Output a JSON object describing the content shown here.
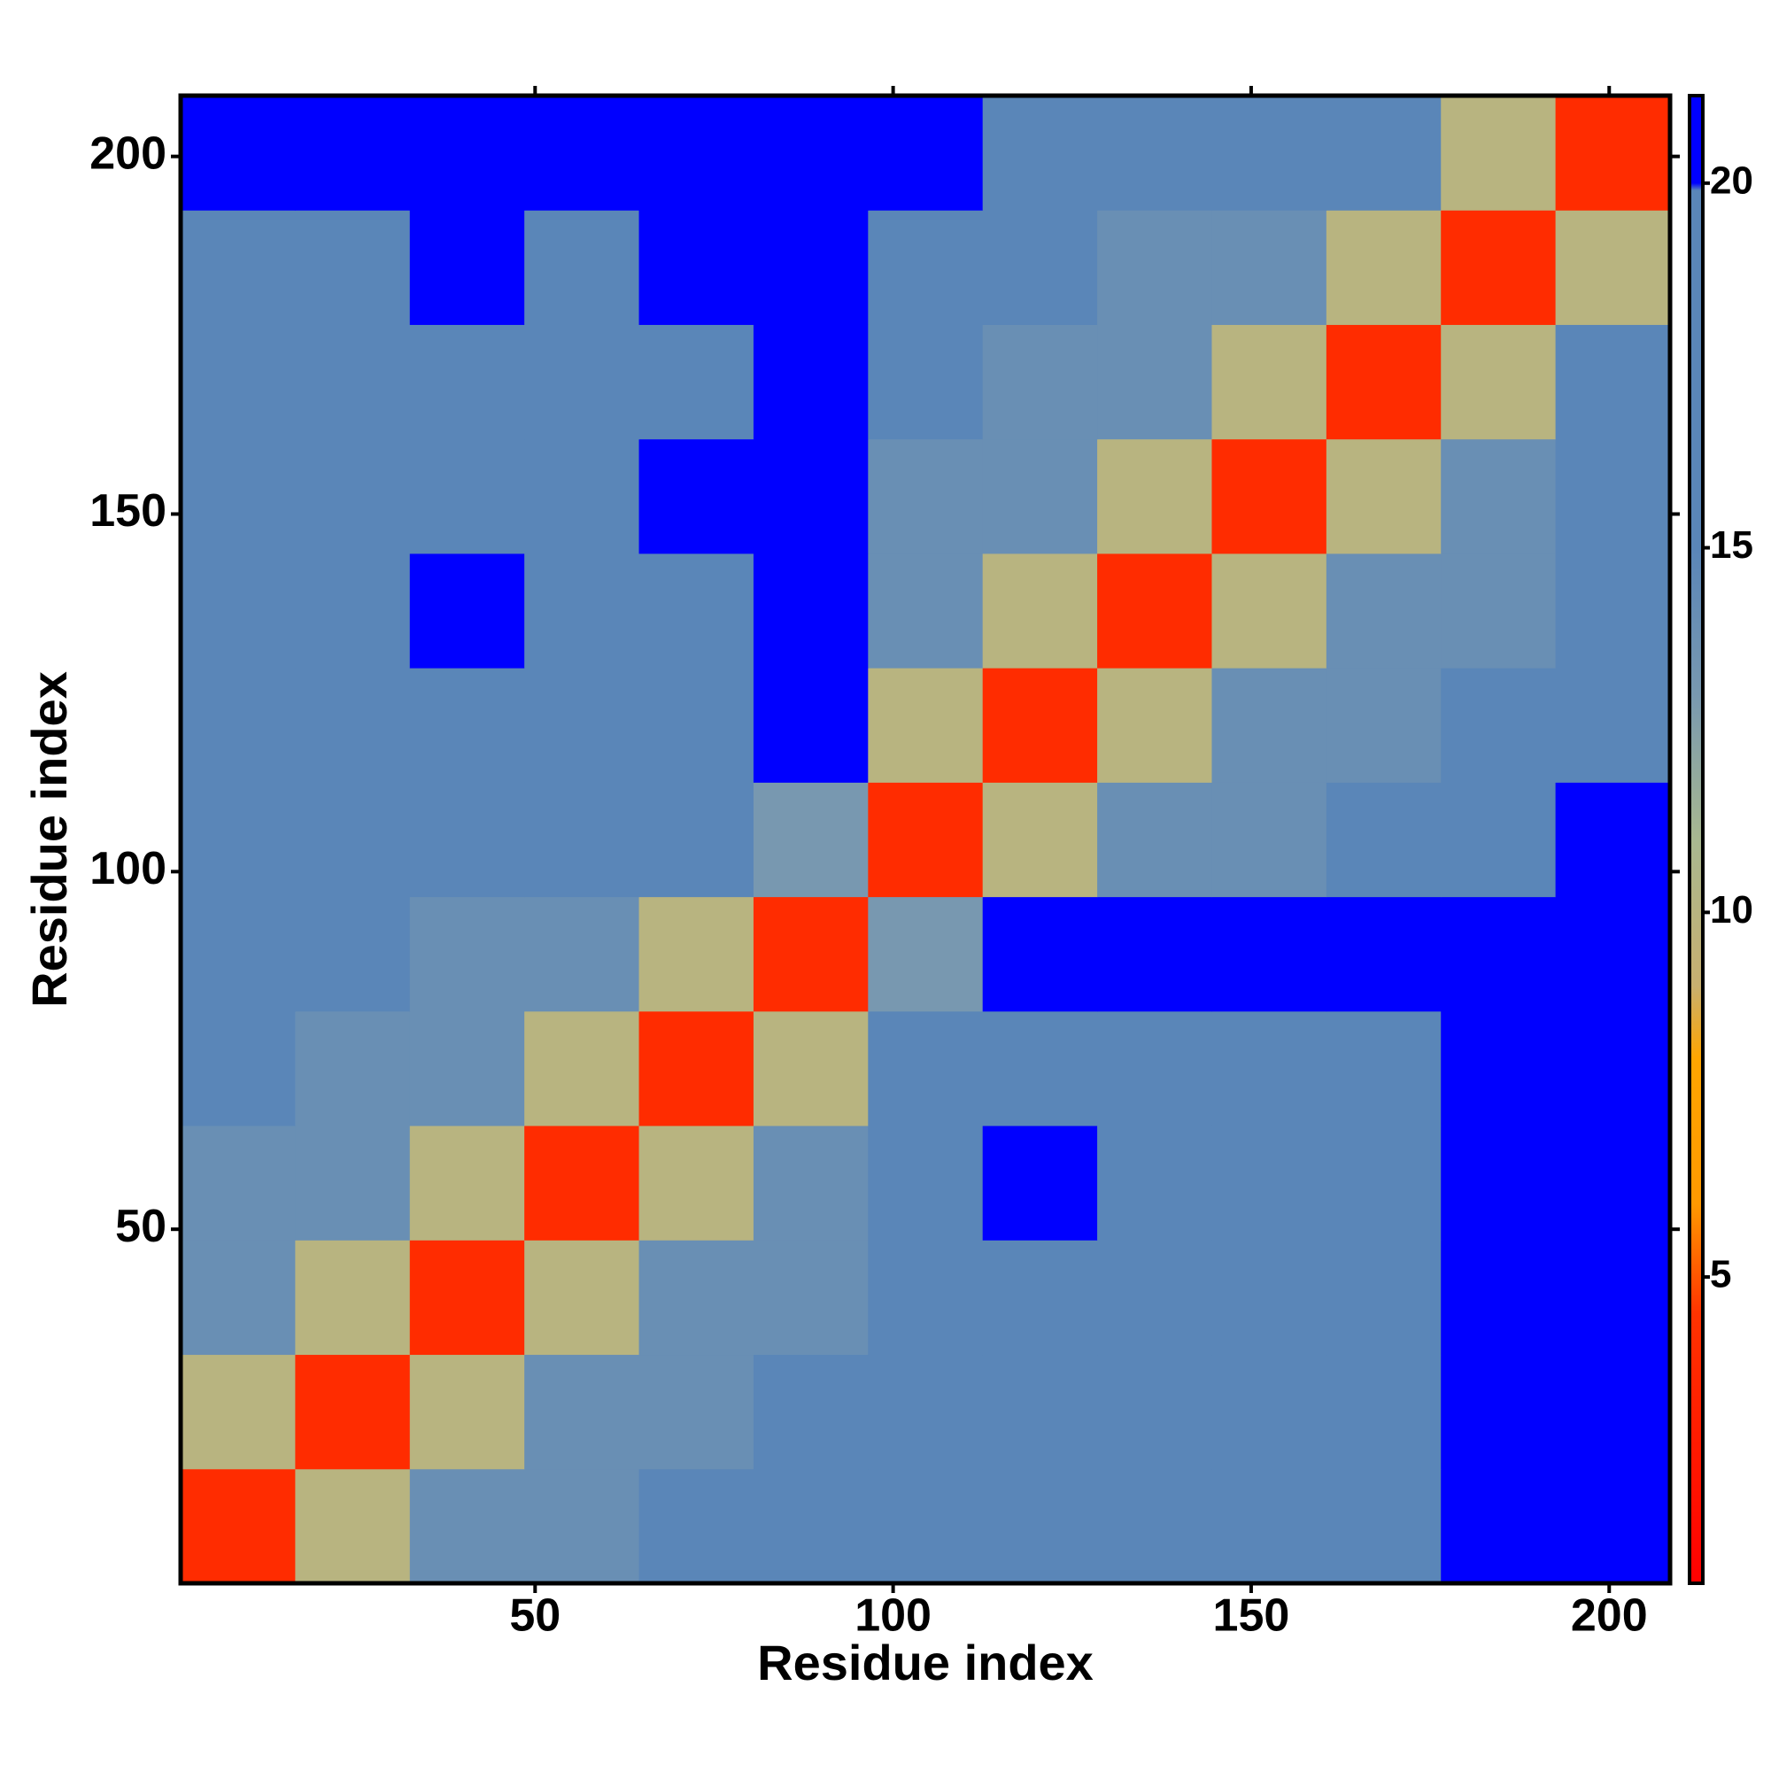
{
  "chart_data": {
    "type": "heatmap",
    "xlabel": "Residue index",
    "ylabel": "Residue index",
    "xbins": [
      0.5,
      16.5,
      32.5,
      48.5,
      64.5,
      80.5,
      96.5,
      112.5,
      128.5,
      144.5,
      160.5,
      176.5,
      192.5,
      208.5
    ],
    "ybins": [
      0.5,
      16.5,
      32.5,
      48.5,
      64.5,
      80.5,
      96.5,
      112.5,
      128.5,
      144.5,
      160.5,
      176.5,
      192.5,
      208.5
    ],
    "values": [
      [
        4,
        10,
        14,
        14,
        15,
        15,
        19,
        19,
        19,
        19,
        19,
        20,
        21
      ],
      [
        10,
        4,
        10,
        14,
        14,
        15,
        19,
        19,
        19,
        19,
        19,
        20,
        21
      ],
      [
        14,
        10,
        4,
        10,
        14,
        14,
        19,
        19,
        19,
        19,
        19,
        20,
        21
      ],
      [
        14,
        14,
        10,
        4,
        10,
        14,
        19,
        20,
        19,
        19,
        19,
        20,
        21
      ],
      [
        15,
        14,
        14,
        10,
        4,
        10,
        17,
        19,
        19,
        19,
        19,
        21,
        21
      ],
      [
        15,
        15,
        14,
        14,
        10,
        4,
        13,
        21,
        21,
        21,
        21,
        21,
        21
      ],
      [
        19,
        19,
        19,
        18,
        17,
        13,
        4,
        10,
        14,
        14,
        15,
        16,
        21
      ],
      [
        19,
        19,
        19,
        19,
        19,
        21,
        10,
        4,
        10,
        14,
        14,
        15,
        19
      ],
      [
        19,
        19,
        20,
        19,
        19,
        21,
        14,
        10,
        4,
        10,
        14,
        14,
        18
      ],
      [
        19,
        19,
        19,
        19,
        20,
        21,
        14,
        14,
        10,
        4,
        10,
        14,
        17
      ],
      [
        19,
        19,
        19,
        19,
        19,
        21,
        15,
        14,
        14,
        10,
        4,
        10,
        16
      ],
      [
        19,
        19,
        20,
        19,
        20,
        21,
        16,
        15,
        14,
        14,
        10,
        4,
        10
      ],
      [
        21,
        21,
        21,
        21,
        21,
        21,
        21,
        19,
        18,
        17,
        16,
        10,
        4
      ]
    ],
    "xlim": [
      0.5,
      208.5
    ],
    "ylim": [
      0.5,
      208.5
    ],
    "xticks": [
      50,
      100,
      150,
      200
    ],
    "yticks": [
      50,
      100,
      150,
      200
    ],
    "colorbar": {
      "lim": [
        0.8,
        21.2
      ],
      "ticks": [
        5,
        10,
        15,
        20
      ],
      "stops": [
        [
          0.8,
          "#ff0000"
        ],
        [
          4.5,
          "#ff3300"
        ],
        [
          6,
          "#ff9900"
        ],
        [
          8,
          "#ffa500"
        ],
        [
          9,
          "#c8b070"
        ],
        [
          11,
          "#a8b890"
        ],
        [
          13,
          "#7898b0"
        ],
        [
          15,
          "#5a86b8"
        ],
        [
          19.9,
          "#5a86b8"
        ],
        [
          20,
          "#0000ff"
        ],
        [
          21.2,
          "#0000ff"
        ]
      ]
    }
  }
}
